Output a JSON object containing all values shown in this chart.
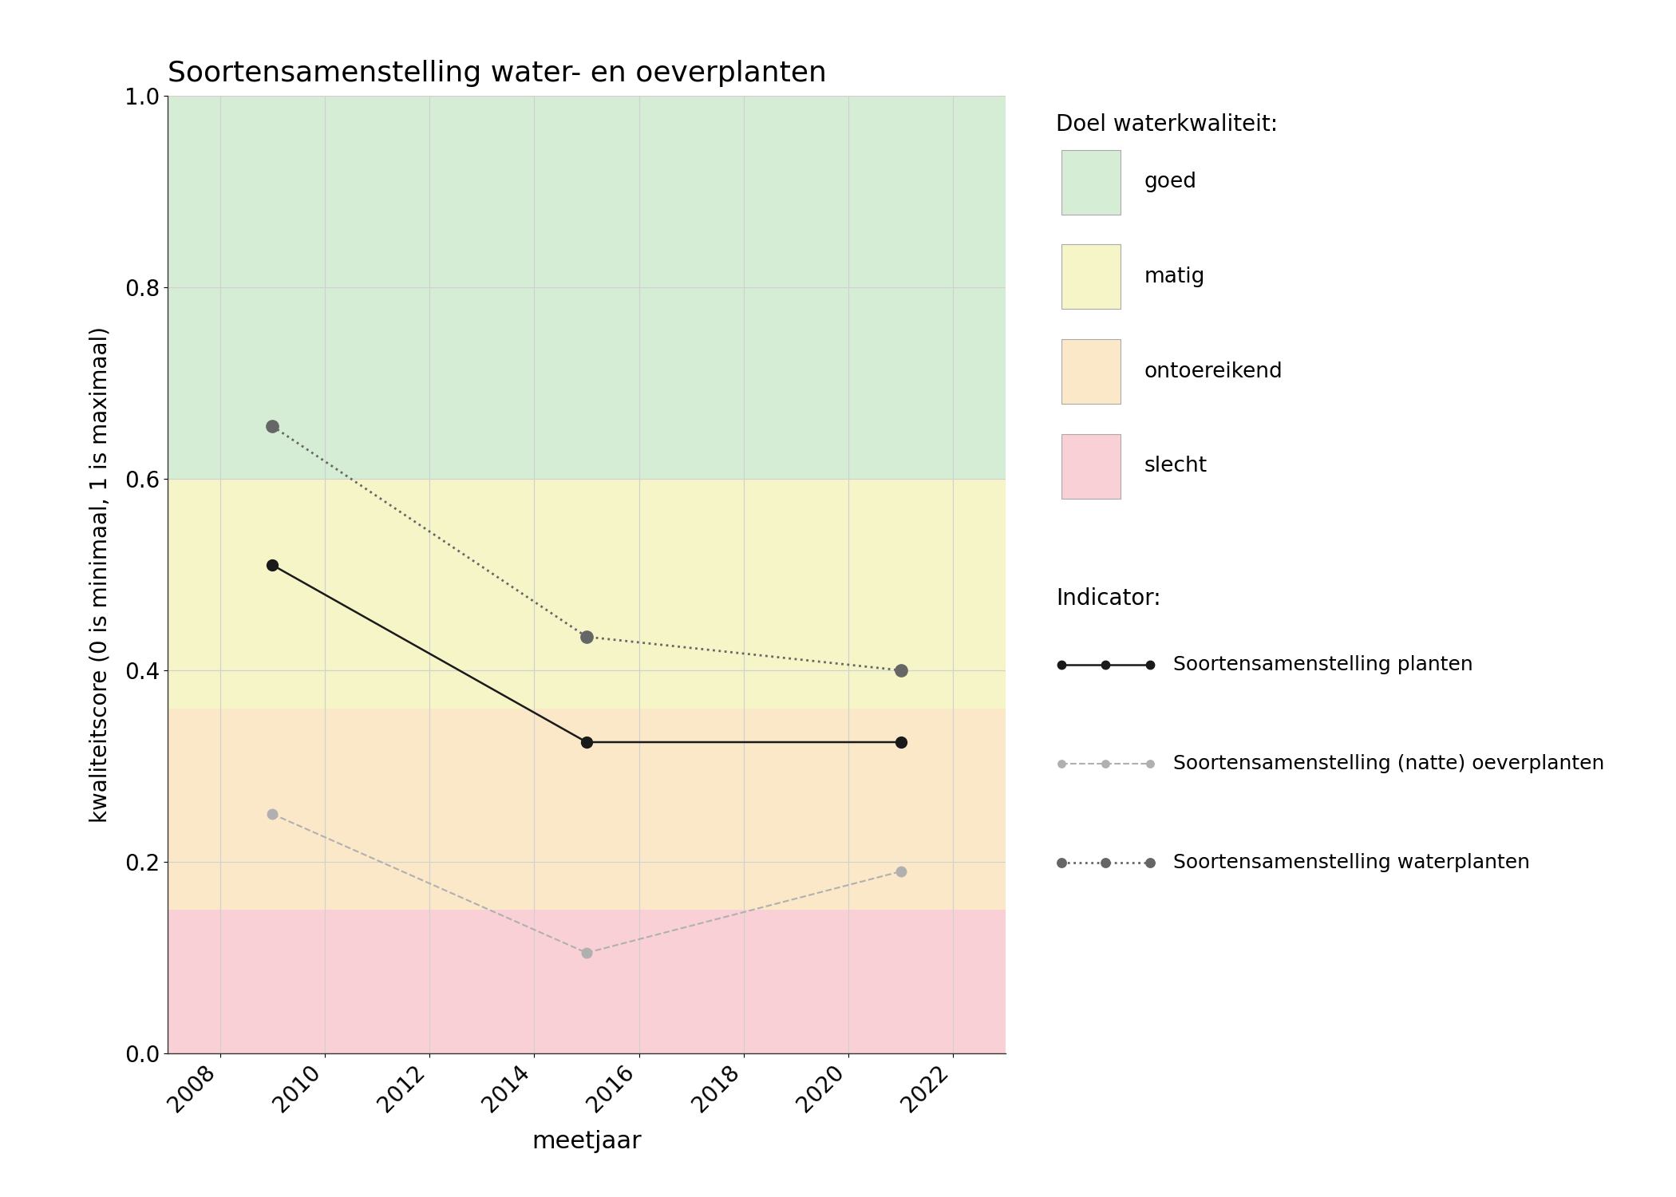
{
  "title": "Soortensamenstelling water- en oeverplanten",
  "xlabel": "meetjaar",
  "ylabel": "kwaliteitscore (0 is minimaal, 1 is maximaal)",
  "xlim": [
    2007,
    2023
  ],
  "ylim": [
    0.0,
    1.0
  ],
  "xticks": [
    2008,
    2010,
    2012,
    2014,
    2016,
    2018,
    2020,
    2022
  ],
  "yticks": [
    0.0,
    0.2,
    0.4,
    0.6,
    0.8,
    1.0
  ],
  "bg_colors": {
    "goed": "#d5ecd5",
    "matig": "#f5f5c8",
    "ontoereikend": "#fae8c8",
    "slecht": "#f9d0d5"
  },
  "bg_ranges": {
    "goed": [
      0.6,
      1.0
    ],
    "matig": [
      0.36,
      0.6
    ],
    "ontoereikend": [
      0.15,
      0.36
    ],
    "slecht": [
      0.0,
      0.15
    ]
  },
  "series": {
    "planten": {
      "x": [
        2009,
        2015,
        2021
      ],
      "y": [
        0.51,
        0.325,
        0.325
      ],
      "color": "#1a1a1a",
      "linestyle": "solid",
      "linewidth": 1.8,
      "marker": "o",
      "markersize": 10,
      "label": "Soortensamenstelling planten"
    },
    "oeverplanten": {
      "x": [
        2009,
        2015,
        2021
      ],
      "y": [
        0.25,
        0.105,
        0.19
      ],
      "color": "#b0b0b0",
      "linestyle": "dashed",
      "linewidth": 1.5,
      "marker": "o",
      "markersize": 9,
      "label": "Soortensamenstelling (natte) oeverplanten"
    },
    "waterplanten": {
      "x": [
        2009,
        2015,
        2021
      ],
      "y": [
        0.655,
        0.435,
        0.4
      ],
      "color": "#666666",
      "linestyle": "dotted",
      "linewidth": 2.0,
      "marker": "o",
      "markersize": 11,
      "label": "Soortensamenstelling waterplanten"
    }
  },
  "legend_title_doel": "Doel waterkwaliteit:",
  "legend_title_indicator": "Indicator:",
  "grid_color": "#d0d0d0",
  "grid_linewidth": 0.8,
  "figure_bg": "#ffffff"
}
